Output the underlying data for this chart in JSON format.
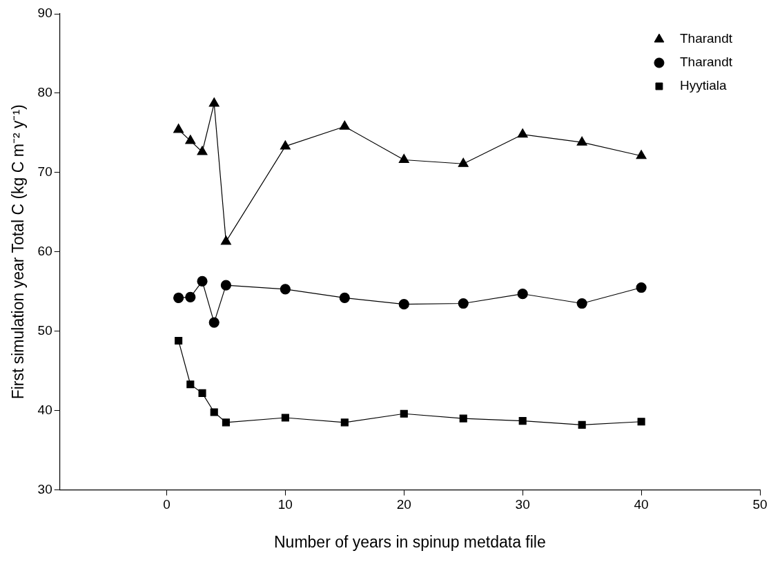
{
  "chart_data": {
    "type": "line",
    "xlabel": "Number of years in spinup metdata file",
    "ylabel": "First simulation year Total C (kg C m⁻² y⁻¹)",
    "x": [
      1,
      2,
      3,
      4,
      5,
      10,
      15,
      20,
      25,
      30,
      35,
      40
    ],
    "xlim": [
      -9,
      50
    ],
    "xticks": [
      0,
      10,
      20,
      30,
      40,
      50
    ],
    "ylim": [
      30,
      90
    ],
    "yticks": [
      30,
      40,
      50,
      60,
      70,
      80,
      90
    ],
    "grid": false,
    "legend": "top right",
    "line_style": "solid",
    "series": [
      {
        "name": "Tharandt",
        "color": "#000000",
        "marker": "triangle",
        "values": [
          75.4,
          74.0,
          72.6,
          78.7,
          61.3,
          73.3,
          75.8,
          71.6,
          71.1,
          74.8,
          73.8,
          72.1
        ]
      },
      {
        "name": "Tharandt",
        "color": "#000000",
        "marker": "circle",
        "values": [
          54.2,
          54.3,
          56.3,
          51.1,
          55.8,
          55.3,
          54.2,
          53.4,
          53.5,
          54.7,
          53.5,
          55.5
        ]
      },
      {
        "name": "Hyytiala",
        "color": "#000000",
        "marker": "square",
        "values": [
          48.8,
          43.3,
          42.2,
          39.8,
          38.5,
          39.1,
          38.5,
          39.6,
          39.0,
          38.7,
          38.2,
          38.6
        ]
      }
    ]
  }
}
